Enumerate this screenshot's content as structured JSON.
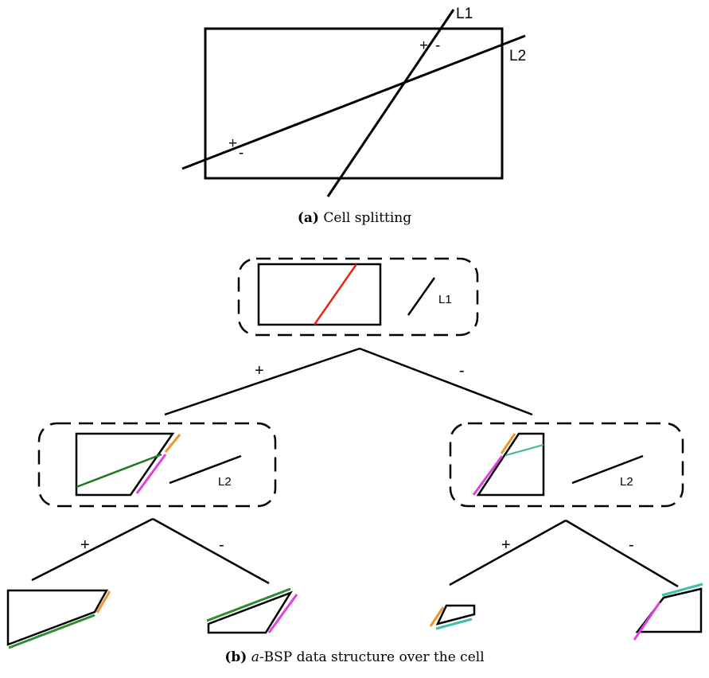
{
  "panel_a": {
    "line1_label": "L1",
    "line2_label": "L2",
    "sign_plus": "+",
    "sign_minus": "-",
    "caption_tag": "(a)",
    "caption_text": "Cell splitting"
  },
  "panel_b": {
    "root_line_label": "L1",
    "child_line_label": "L2",
    "edge_plus": "+",
    "edge_minus": "-",
    "caption_tag": "(b)",
    "caption_italic": "a",
    "caption_text": "-BSP data structure over the cell"
  },
  "colors": {
    "split_line_L1": "#e8231a",
    "split_line_L2_left": "#1f7a1f",
    "split_line_L2_right": "#3cb8a0",
    "edge_orange": "#f0952a",
    "edge_magenta": "#e040e0",
    "edge_green": "#2e8b2e",
    "edge_teal": "#3cc0a8",
    "stroke": "#000000"
  }
}
